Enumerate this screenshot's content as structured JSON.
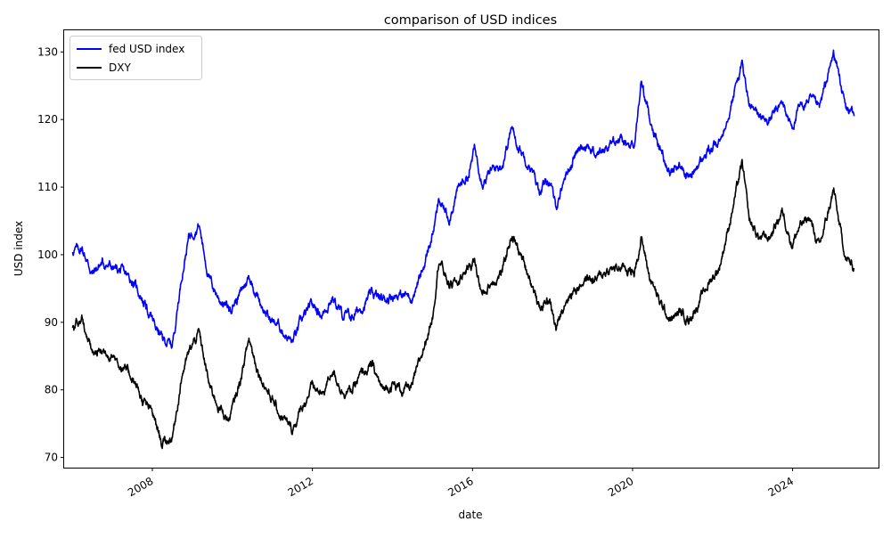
{
  "chart_data": {
    "type": "line",
    "title": "comparison of USD indices",
    "xlabel": "date",
    "ylabel": "USD index",
    "xlim": [
      "2005-10-18",
      "2026-02-23"
    ],
    "ylim": [
      68.5,
      133.2
    ],
    "x_ticks": [
      "2008",
      "2012",
      "2016",
      "2020",
      "2024"
    ],
    "x_tick_rotation_deg": 30,
    "y_ticks": [
      70,
      80,
      90,
      100,
      110,
      120,
      130
    ],
    "grid": false,
    "legend_position": "top-left",
    "series": [
      {
        "name": "fed USD index",
        "color": "#0000ff",
        "points": [
          [
            "2006-01-03",
            100.6
          ],
          [
            "2006-04-01",
            100.9
          ],
          [
            "2006-07-01",
            97.2
          ],
          [
            "2006-10-01",
            98.8
          ],
          [
            "2007-01-01",
            98.1
          ],
          [
            "2007-04-01",
            97.4
          ],
          [
            "2007-07-01",
            96.2
          ],
          [
            "2007-10-01",
            93.5
          ],
          [
            "2008-01-01",
            90.3
          ],
          [
            "2008-04-01",
            87.5
          ],
          [
            "2008-07-01",
            86.6
          ],
          [
            "2008-10-01",
            97.5
          ],
          [
            "2008-12-01",
            102.8
          ],
          [
            "2009-03-01",
            104.5
          ],
          [
            "2009-06-01",
            96.5
          ],
          [
            "2009-09-01",
            93.5
          ],
          [
            "2009-12-01",
            92.0
          ],
          [
            "2010-03-01",
            93.8
          ],
          [
            "2010-06-01",
            96.8
          ],
          [
            "2010-09-01",
            93.4
          ],
          [
            "2010-12-01",
            90.5
          ],
          [
            "2011-03-01",
            89.5
          ],
          [
            "2011-07-01",
            87.0
          ],
          [
            "2011-10-01",
            90.5
          ],
          [
            "2012-01-01",
            92.5
          ],
          [
            "2012-04-01",
            91.2
          ],
          [
            "2012-07-01",
            93.8
          ],
          [
            "2012-10-01",
            91.0
          ],
          [
            "2013-01-01",
            90.8
          ],
          [
            "2013-04-01",
            92.4
          ],
          [
            "2013-07-01",
            94.2
          ],
          [
            "2013-10-01",
            93.3
          ],
          [
            "2014-01-01",
            94.1
          ],
          [
            "2014-04-01",
            94.0
          ],
          [
            "2014-07-01",
            93.8
          ],
          [
            "2014-10-01",
            97.5
          ],
          [
            "2015-01-01",
            103.0
          ],
          [
            "2015-03-01",
            107.8
          ],
          [
            "2015-06-01",
            105.5
          ],
          [
            "2015-09-01",
            110.0
          ],
          [
            "2015-12-01",
            112.0
          ],
          [
            "2016-01-20",
            115.8
          ],
          [
            "2016-04-01",
            111.0
          ],
          [
            "2016-07-01",
            112.5
          ],
          [
            "2016-10-01",
            113.5
          ],
          [
            "2016-12-20",
            118.8
          ],
          [
            "2017-03-01",
            115.8
          ],
          [
            "2017-06-01",
            113.5
          ],
          [
            "2017-09-01",
            109.5
          ],
          [
            "2017-12-01",
            111.0
          ],
          [
            "2018-02-01",
            107.0
          ],
          [
            "2018-05-01",
            112.0
          ],
          [
            "2018-08-01",
            115.0
          ],
          [
            "2018-11-01",
            116.5
          ],
          [
            "2019-02-01",
            114.8
          ],
          [
            "2019-05-01",
            115.8
          ],
          [
            "2019-08-01",
            117.3
          ],
          [
            "2019-11-01",
            116.2
          ],
          [
            "2020-01-15",
            115.6
          ],
          [
            "2020-03-20",
            125.7
          ],
          [
            "2020-06-01",
            120.5
          ],
          [
            "2020-09-01",
            116.0
          ],
          [
            "2020-12-15",
            112.0
          ],
          [
            "2021-03-01",
            113.5
          ],
          [
            "2021-06-01",
            111.3
          ],
          [
            "2021-09-01",
            113.5
          ],
          [
            "2021-12-01",
            115.5
          ],
          [
            "2022-03-01",
            116.3
          ],
          [
            "2022-06-01",
            121.5
          ],
          [
            "2022-09-28",
            128.3
          ],
          [
            "2022-12-01",
            122.0
          ],
          [
            "2023-03-01",
            120.5
          ],
          [
            "2023-06-01",
            119.8
          ],
          [
            "2023-10-01",
            122.5
          ],
          [
            "2023-12-25",
            118.8
          ],
          [
            "2024-03-01",
            121.5
          ],
          [
            "2024-06-01",
            123.0
          ],
          [
            "2024-09-01",
            121.5
          ],
          [
            "2025-01-10",
            129.8
          ],
          [
            "2025-03-01",
            126.5
          ],
          [
            "2025-05-01",
            121.5
          ],
          [
            "2025-07-15",
            120.5
          ]
        ]
      },
      {
        "name": "DXY",
        "color": "#000000",
        "points": [
          [
            "2006-01-03",
            89.5
          ],
          [
            "2006-04-01",
            90.5
          ],
          [
            "2006-07-01",
            85.2
          ],
          [
            "2006-10-01",
            85.8
          ],
          [
            "2007-01-01",
            85.3
          ],
          [
            "2007-04-01",
            83.3
          ],
          [
            "2007-07-01",
            81.9
          ],
          [
            "2007-10-01",
            78.5
          ],
          [
            "2008-01-01",
            76.5
          ],
          [
            "2008-04-01",
            72.0
          ],
          [
            "2008-07-01",
            73.0
          ],
          [
            "2008-10-01",
            82.5
          ],
          [
            "2008-12-01",
            85.5
          ],
          [
            "2009-03-01",
            88.5
          ],
          [
            "2009-06-01",
            80.8
          ],
          [
            "2009-09-01",
            77.5
          ],
          [
            "2009-12-01",
            75.5
          ],
          [
            "2010-03-01",
            80.5
          ],
          [
            "2010-06-01",
            87.5
          ],
          [
            "2010-09-01",
            82.5
          ],
          [
            "2010-12-01",
            79.5
          ],
          [
            "2011-03-01",
            76.5
          ],
          [
            "2011-07-01",
            74.0
          ],
          [
            "2011-10-01",
            77.5
          ],
          [
            "2012-01-01",
            80.5
          ],
          [
            "2012-04-01",
            79.2
          ],
          [
            "2012-07-01",
            83.0
          ],
          [
            "2012-10-01",
            79.8
          ],
          [
            "2013-01-01",
            80.0
          ],
          [
            "2013-04-01",
            82.5
          ],
          [
            "2013-07-01",
            83.5
          ],
          [
            "2013-10-01",
            80.0
          ],
          [
            "2014-01-01",
            80.8
          ],
          [
            "2014-04-01",
            80.0
          ],
          [
            "2014-07-01",
            80.5
          ],
          [
            "2014-10-01",
            85.5
          ],
          [
            "2015-01-01",
            91.0
          ],
          [
            "2015-03-01",
            99.5
          ],
          [
            "2015-06-01",
            95.5
          ],
          [
            "2015-09-01",
            96.0
          ],
          [
            "2015-12-01",
            98.5
          ],
          [
            "2016-01-20",
            99.0
          ],
          [
            "2016-04-01",
            94.0
          ],
          [
            "2016-07-01",
            96.0
          ],
          [
            "2016-10-01",
            97.5
          ],
          [
            "2016-12-20",
            103.0
          ],
          [
            "2017-03-01",
            100.5
          ],
          [
            "2017-06-01",
            97.0
          ],
          [
            "2017-09-01",
            92.0
          ],
          [
            "2017-12-01",
            93.5
          ],
          [
            "2018-02-01",
            89.0
          ],
          [
            "2018-05-01",
            93.5
          ],
          [
            "2018-08-01",
            95.0
          ],
          [
            "2018-11-01",
            96.5
          ],
          [
            "2019-02-01",
            96.3
          ],
          [
            "2019-05-01",
            97.5
          ],
          [
            "2019-08-01",
            98.0
          ],
          [
            "2019-11-01",
            98.0
          ],
          [
            "2020-01-15",
            97.3
          ],
          [
            "2020-03-20",
            102.5
          ],
          [
            "2020-06-01",
            97.0
          ],
          [
            "2020-09-01",
            93.0
          ],
          [
            "2020-12-15",
            90.2
          ],
          [
            "2021-03-01",
            91.5
          ],
          [
            "2021-06-01",
            90.5
          ],
          [
            "2021-09-01",
            93.0
          ],
          [
            "2021-12-01",
            96.0
          ],
          [
            "2022-03-01",
            98.0
          ],
          [
            "2022-06-01",
            104.5
          ],
          [
            "2022-09-28",
            113.5
          ],
          [
            "2022-12-01",
            105.0
          ],
          [
            "2023-03-01",
            102.5
          ],
          [
            "2023-06-01",
            102.5
          ],
          [
            "2023-10-01",
            106.5
          ],
          [
            "2023-12-25",
            101.5
          ],
          [
            "2024-03-01",
            104.0
          ],
          [
            "2024-06-01",
            105.5
          ],
          [
            "2024-09-01",
            101.0
          ],
          [
            "2025-01-10",
            109.5
          ],
          [
            "2025-03-01",
            104.5
          ],
          [
            "2025-05-01",
            99.5
          ],
          [
            "2025-07-15",
            98.0
          ]
        ]
      }
    ]
  }
}
